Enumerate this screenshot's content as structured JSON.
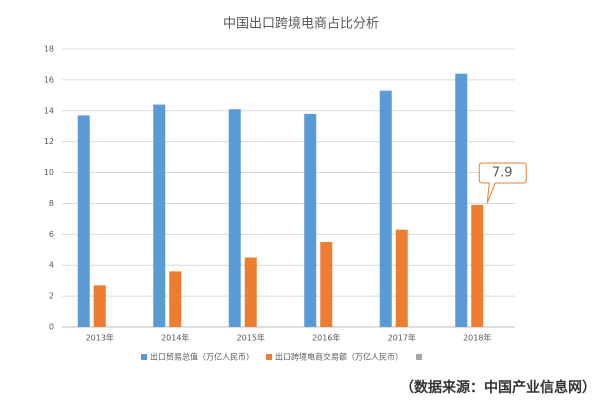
{
  "chart_data": {
    "type": "bar",
    "title": "中国出口跨境电商占比分析",
    "categories": [
      "2013年",
      "2014年",
      "2015年",
      "2016年",
      "2017年",
      "2018年"
    ],
    "series": [
      {
        "name": "出口贸易总值（万亿人民币）",
        "color": "#5b9bd5",
        "values": [
          13.7,
          14.4,
          14.1,
          13.8,
          15.3,
          16.4
        ]
      },
      {
        "name": "出口跨境电商交易额（万亿人民币）",
        "color": "#ed7d31",
        "values": [
          2.7,
          3.6,
          4.5,
          5.5,
          6.3,
          7.9
        ]
      }
    ],
    "ylim": [
      0,
      18
    ],
    "yticks": [
      0,
      2,
      4,
      6,
      8,
      10,
      12,
      14,
      16,
      18
    ],
    "grid": true,
    "source": "（数据来源：中国产业信息网）"
  }
}
